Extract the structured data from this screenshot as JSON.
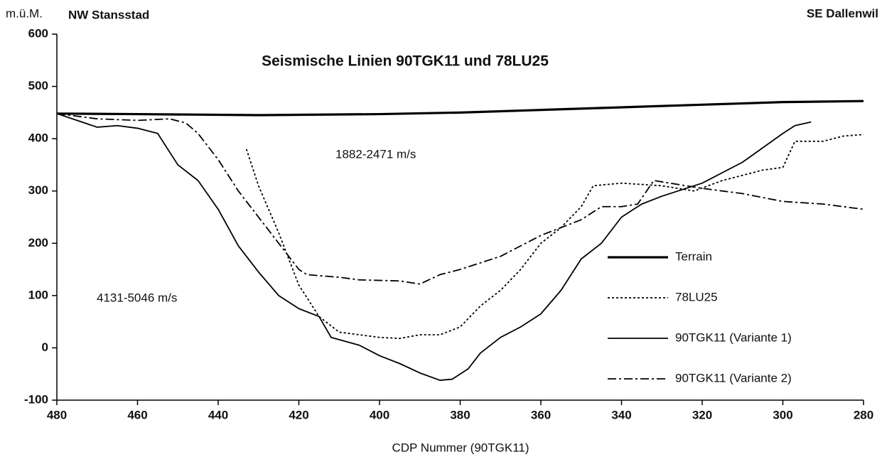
{
  "chart_data": {
    "type": "line",
    "title": "Seismische Linien 90TGK11 und 78LU25",
    "ylabel": "m.ü.M.",
    "xlabel": "CDP Nummer (90TGK11)",
    "left_label": "NW Stansstad",
    "right_label": "SE Dallenwil",
    "annotations": [
      "1882-2471  m/s",
      "4131-5046  m/s"
    ],
    "xlim": [
      480,
      280
    ],
    "ylim": [
      -100,
      600
    ],
    "xticks": [
      480,
      460,
      440,
      420,
      400,
      380,
      360,
      340,
      320,
      300,
      280
    ],
    "yticks": [
      -100,
      0,
      100,
      200,
      300,
      400,
      500,
      600
    ],
    "legend": "lower right",
    "series": [
      {
        "name": "Terrain",
        "color": "#000000",
        "style": "solid",
        "width": 3.2,
        "x": [
          480,
          460,
          430,
          400,
          380,
          360,
          340,
          320,
          300,
          280
        ],
        "values": [
          448,
          447,
          445,
          447,
          450,
          455,
          460,
          465,
          470,
          472
        ]
      },
      {
        "name": "78LU25",
        "color": "#000000",
        "style": "dotted",
        "width": 1.8,
        "x": [
          433,
          430,
          425,
          420,
          415,
          410,
          400,
          395,
          390,
          385,
          380,
          375,
          370,
          365,
          360,
          355,
          350,
          347,
          340,
          330,
          322,
          315,
          305,
          300,
          297,
          290,
          285,
          280
        ],
        "values": [
          380,
          310,
          220,
          120,
          60,
          30,
          20,
          18,
          25,
          25,
          40,
          80,
          110,
          150,
          200,
          230,
          270,
          310,
          315,
          310,
          300,
          320,
          340,
          345,
          395,
          395,
          405,
          408
        ]
      },
      {
        "name": "90TGK11  (Variante 1)",
        "color": "#000000",
        "style": "solid",
        "width": 1.8,
        "x": [
          480,
          470,
          465,
          460,
          455,
          450,
          445,
          440,
          435,
          430,
          425,
          420,
          415,
          412,
          405,
          400,
          395,
          390,
          385,
          382,
          378,
          375,
          370,
          365,
          360,
          355,
          350,
          345,
          340,
          335,
          330,
          320,
          310,
          300,
          297,
          293
        ],
        "values": [
          448,
          422,
          425,
          420,
          410,
          350,
          320,
          265,
          195,
          145,
          100,
          75,
          60,
          20,
          5,
          -15,
          -30,
          -48,
          -62,
          -60,
          -40,
          -10,
          20,
          40,
          65,
          110,
          170,
          200,
          250,
          275,
          290,
          315,
          355,
          410,
          425,
          432
        ]
      },
      {
        "name": "90TGK11  (Variante 2)",
        "color": "#000000",
        "style": "dashdot",
        "width": 1.8,
        "x": [
          480,
          470,
          460,
          452,
          448,
          445,
          440,
          435,
          430,
          425,
          420,
          418,
          410,
          405,
          395,
          390,
          385,
          380,
          370,
          360,
          350,
          345,
          340,
          336,
          332,
          328,
          320,
          310,
          300,
          290,
          280
        ],
        "values": [
          448,
          438,
          435,
          438,
          430,
          410,
          360,
          300,
          250,
          200,
          150,
          140,
          135,
          130,
          128,
          122,
          140,
          150,
          175,
          215,
          245,
          270,
          270,
          275,
          320,
          315,
          305,
          295,
          280,
          275,
          265
        ]
      }
    ]
  }
}
